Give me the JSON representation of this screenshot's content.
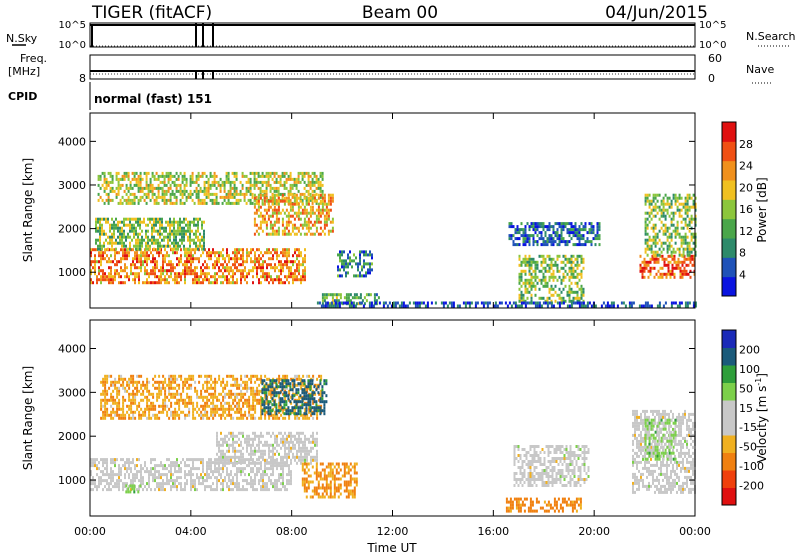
{
  "header": {
    "station": "TIGER (fitACF)",
    "beam": "Beam 00",
    "date": "04/Jun/2015"
  },
  "summary_panels": {
    "nsky_label": "N.Sky",
    "nsky_ticks": [
      "10^5",
      "10^0"
    ],
    "nsearch_label": "N.Search",
    "nsearch_ticks": [
      "10^5",
      "10^0"
    ],
    "freq_label_1": "Freq.",
    "freq_label_2": "[MHz]",
    "freq_ticks": [
      "8"
    ],
    "nave_label": "Nave",
    "nave_ticks": [
      "60",
      "0"
    ],
    "cpid_label": "CPID",
    "cpid_value": "normal (fast) 151"
  },
  "colors": {
    "power_scale": [
      "#0a14e0",
      "#1f52b8",
      "#2d8a6a",
      "#4aa64a",
      "#8cc63c",
      "#f0c020",
      "#f0901c",
      "#f05014",
      "#e01010"
    ],
    "velocity_scale": [
      "#e01010",
      "#f0400c",
      "#f08010",
      "#f0b020",
      "#c8c8c8",
      "#c8c8c8",
      "#7cd04a",
      "#2e9e3a",
      "#1a5a7a",
      "#1a2ab8"
    ],
    "ground_scatter": "#c8c8c8"
  },
  "chart_data": [
    {
      "type": "heatmap",
      "title": "",
      "xlabel": "Time UT",
      "ylabel": "Slant Range [km]",
      "x_ticks": [
        "00:00",
        "04:00",
        "08:00",
        "12:00",
        "16:00",
        "20:00",
        "00:00"
      ],
      "y_ticks": [
        "1000",
        "2000",
        "3000",
        "4000"
      ],
      "xlim_hours": [
        0,
        24
      ],
      "ylim_km": [
        180,
        4650
      ],
      "colorbar_label": "Power [dB]",
      "colorbar_ticks": [
        "4",
        "8",
        "12",
        "16",
        "20",
        "24",
        "28"
      ],
      "colorbar_range": [
        0,
        30
      ],
      "regions": [
        {
          "name": "evening-f-region",
          "t0": 0.0,
          "t1": 8.5,
          "r0": 780,
          "r1": 1550,
          "value": 22
        },
        {
          "name": "evening-f-lower",
          "t0": 0.2,
          "t1": 4.5,
          "r0": 1500,
          "r1": 2250,
          "value": 14
        },
        {
          "name": "upper-band",
          "t0": 0.3,
          "t1": 9.2,
          "r0": 2600,
          "r1": 3300,
          "value": 16
        },
        {
          "name": "arc-band",
          "t0": 6.5,
          "t1": 9.6,
          "r0": 1900,
          "r1": 2800,
          "value": 20
        },
        {
          "name": "mid-night-cluster",
          "t0": 9.8,
          "t1": 11.2,
          "r0": 900,
          "r1": 1500,
          "value": 8
        },
        {
          "name": "near-range-echo",
          "t0": 9.2,
          "t1": 11.5,
          "r0": 300,
          "r1": 520,
          "value": 12
        },
        {
          "name": "afternoon-patch",
          "t0": 17.0,
          "t1": 19.6,
          "r0": 300,
          "r1": 1400,
          "value": 14
        },
        {
          "name": "late-arc",
          "t0": 16.6,
          "t1": 20.2,
          "r0": 1650,
          "r1": 2150,
          "value": 6
        },
        {
          "name": "dusk-enhancement",
          "t0": 21.8,
          "t1": 24.0,
          "r0": 850,
          "r1": 1400,
          "value": 24
        },
        {
          "name": "dusk-upper",
          "t0": 22.0,
          "t1": 24.0,
          "r0": 1400,
          "r1": 2800,
          "value": 14
        },
        {
          "name": "e-region-line",
          "t0": 9.0,
          "t1": 24.0,
          "r0": 230,
          "r1": 330,
          "value": 4
        }
      ]
    },
    {
      "type": "heatmap",
      "title": "",
      "xlabel": "Time UT",
      "ylabel": "Slant Range [km]",
      "x_ticks": [
        "00:00",
        "04:00",
        "08:00",
        "12:00",
        "16:00",
        "20:00",
        "00:00"
      ],
      "y_ticks": [
        "1000",
        "2000",
        "3000",
        "4000"
      ],
      "xlim_hours": [
        0,
        24
      ],
      "ylim_km": [
        180,
        4650
      ],
      "colorbar_label": "Velocity [m s",
      "colorbar_label_sup": "-1",
      "colorbar_label_end": "]",
      "colorbar_ticks": [
        "-200",
        "-100",
        "-50",
        "-15",
        "15",
        "50",
        "100",
        "200"
      ],
      "colorbar_range": [
        -250,
        250
      ],
      "regions": [
        {
          "name": "ground-scatter-main",
          "t0": 0.0,
          "t1": 8.0,
          "r0": 780,
          "r1": 1500,
          "value": 0,
          "ground": true
        },
        {
          "name": "ground-scatter-arc",
          "t0": 5.0,
          "t1": 9.0,
          "r0": 1400,
          "r1": 2100,
          "value": 0,
          "ground": true
        },
        {
          "name": "mixed-upper",
          "t0": 0.4,
          "t1": 9.2,
          "r0": 2400,
          "r1": 3400,
          "value": -40
        },
        {
          "name": "eastward-upper",
          "t0": 6.8,
          "t1": 9.4,
          "r0": 2500,
          "r1": 3300,
          "value": 120
        },
        {
          "name": "near-range-orange",
          "t0": 8.4,
          "t1": 10.6,
          "r0": 600,
          "r1": 1400,
          "value": -55
        },
        {
          "name": "afternoon-orange",
          "t0": 16.5,
          "t1": 19.5,
          "r0": 300,
          "r1": 600,
          "value": -70
        },
        {
          "name": "afternoon-ground",
          "t0": 16.8,
          "t1": 19.8,
          "r0": 900,
          "r1": 1800,
          "value": 0,
          "ground": true
        },
        {
          "name": "dusk-ground",
          "t0": 21.5,
          "t1": 24.0,
          "r0": 700,
          "r1": 2600,
          "value": 0,
          "ground": true
        },
        {
          "name": "dusk-green",
          "t0": 22.0,
          "t1": 23.2,
          "r0": 1500,
          "r1": 2400,
          "value": 30
        },
        {
          "name": "green-early",
          "t0": 1.4,
          "t1": 2.0,
          "r0": 700,
          "r1": 900,
          "value": 30
        }
      ]
    }
  ]
}
